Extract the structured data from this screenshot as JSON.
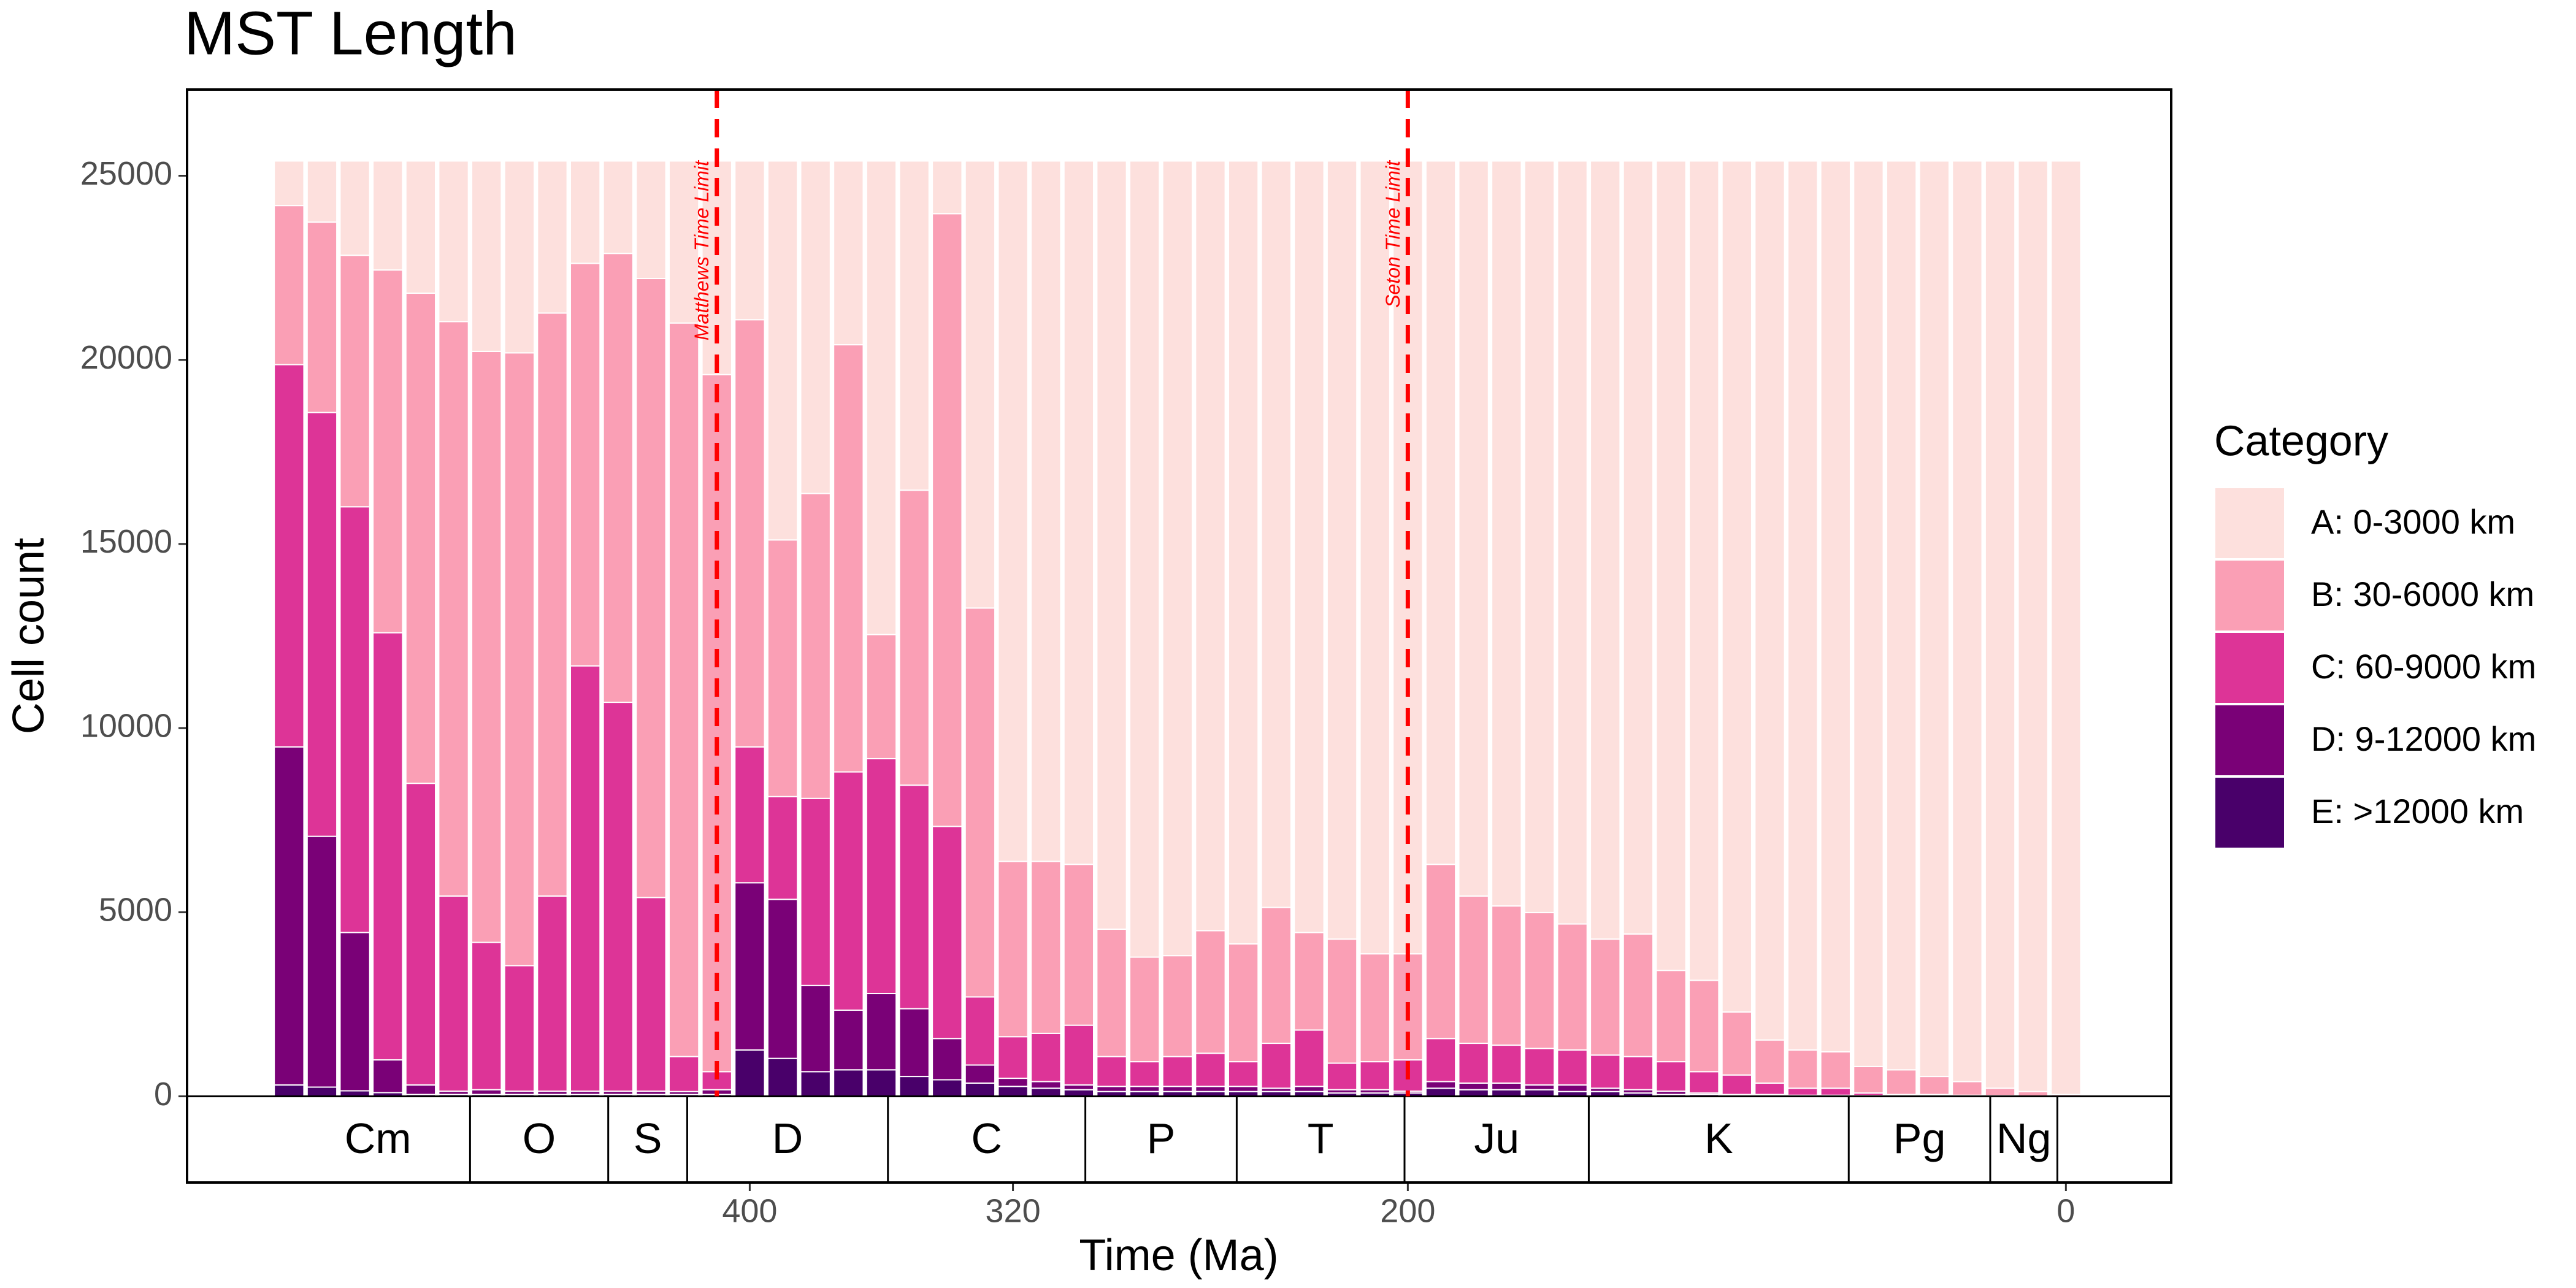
{
  "chart_data": {
    "type": "stacked_bar",
    "title": "MST Length",
    "x_label": "Time (Ma)",
    "y_label": "Cell count",
    "legend_title": "Category",
    "legend_position": "right",
    "x": [
      540,
      530,
      520,
      510,
      500,
      490,
      480,
      470,
      460,
      450,
      440,
      430,
      420,
      410,
      400,
      390,
      380,
      370,
      360,
      350,
      340,
      330,
      320,
      310,
      300,
      290,
      280,
      270,
      260,
      250,
      240,
      230,
      220,
      210,
      200,
      190,
      180,
      170,
      160,
      150,
      140,
      130,
      120,
      110,
      100,
      90,
      80,
      70,
      60,
      50,
      40,
      30,
      20,
      10,
      0
    ],
    "series": [
      {
        "name": "A: 0-3000 km",
        "color": "#fde0dd",
        "values": [
          1210,
          1660,
          2560,
          2960,
          3590,
          4360,
          5170,
          5210,
          4130,
          2780,
          2510,
          3190,
          4400,
          5800,
          4310,
          10290,
          9030,
          4990,
          12860,
          8940,
          1430,
          12140,
          19020,
          19020,
          19100,
          20860,
          21620,
          21580,
          20900,
          21260,
          20270,
          20950,
          21130,
          21530,
          21530,
          19100,
          19960,
          20230,
          20410,
          20720,
          21130,
          20990,
          21980,
          22250,
          23110,
          23870,
          24140,
          24190,
          24590,
          24680,
          24860,
          25000,
          25180,
          25270,
          25350
        ]
      },
      {
        "name": "B: 30-6000 km",
        "color": "#fa9fb5",
        "values": [
          4320,
          5170,
          6830,
          9850,
          13310,
          15600,
          16050,
          16640,
          15830,
          10930,
          12190,
          16810,
          19920,
          18930,
          11600,
          6970,
          8280,
          11600,
          3370,
          8010,
          16640,
          10560,
          4760,
          4670,
          4370,
          3460,
          2840,
          2740,
          3330,
          3200,
          3690,
          2650,
          3370,
          2930,
          2880,
          4730,
          4000,
          3780,
          3690,
          3420,
          3150,
          3330,
          2480,
          2480,
          1710,
          1170,
          1040,
          990,
          720,
          670,
          490,
          370,
          200,
          120,
          50
        ]
      },
      {
        "name": "C: 60-9000 km",
        "color": "#dd3497",
        "values": [
          10380,
          11510,
          11560,
          11600,
          8190,
          5300,
          4000,
          3410,
          5300,
          11550,
          10560,
          5260,
          950,
          490,
          3690,
          2790,
          5080,
          6470,
          6380,
          6070,
          5760,
          1850,
          1130,
          1310,
          1620,
          810,
          670,
          810,
          900,
          670,
          1220,
          1530,
          720,
          760,
          850,
          1170,
          1080,
          1030,
          990,
          950,
          900,
          900,
          800,
          580,
          530,
          310,
          190,
          190,
          70,
          30,
          30,
          20,
          20,
          10,
          0
        ]
      },
      {
        "name": "D: 9-12000 km",
        "color": "#7a0177",
        "values": [
          9180,
          6810,
          4300,
          890,
          260,
          90,
          130,
          90,
          90,
          90,
          90,
          90,
          80,
          130,
          4540,
          4320,
          2340,
          1620,
          2070,
          1840,
          1120,
          490,
          220,
          180,
          130,
          140,
          140,
          140,
          140,
          140,
          90,
          140,
          90,
          90,
          50,
          180,
          180,
          180,
          130,
          180,
          90,
          90,
          90,
          40,
          20,
          30,
          20,
          20,
          10,
          10,
          10,
          10,
          0,
          0,
          0
        ]
      },
      {
        "name": "E: >12000 km",
        "color": "#49006a",
        "values": [
          310,
          250,
          150,
          100,
          50,
          50,
          50,
          50,
          50,
          50,
          50,
          50,
          50,
          50,
          1260,
          1030,
          670,
          720,
          720,
          540,
          450,
          360,
          270,
          220,
          180,
          130,
          130,
          130,
          130,
          130,
          130,
          130,
          90,
          90,
          90,
          220,
          180,
          180,
          180,
          130,
          130,
          90,
          50,
          50,
          30,
          20,
          10,
          10,
          10,
          10,
          10,
          0,
          0,
          0,
          0
        ]
      }
    ],
    "xlim": [
      571,
      -32
    ],
    "xticks": [
      400,
      320,
      200,
      0
    ],
    "ylim": [
      -2340,
      27340
    ],
    "yticks": [
      0,
      5000,
      10000,
      15000,
      20000,
      25000
    ],
    "annotations": [
      {
        "text": "Matthews Time Limit",
        "x": 410,
        "color": "#ff0000"
      },
      {
        "text": "Seton Time Limit",
        "x": 200,
        "color": "#ff0000"
      }
    ],
    "periods": [
      {
        "name": "Cm",
        "start": 541,
        "end": 485
      },
      {
        "name": "O",
        "start": 485,
        "end": 443
      },
      {
        "name": "S",
        "start": 443,
        "end": 419
      },
      {
        "name": "D",
        "start": 419,
        "end": 358
      },
      {
        "name": "C",
        "start": 358,
        "end": 298
      },
      {
        "name": "P",
        "start": 298,
        "end": 252
      },
      {
        "name": "T",
        "start": 252,
        "end": 201
      },
      {
        "name": "Ju",
        "start": 201,
        "end": 145
      },
      {
        "name": "K",
        "start": 145,
        "end": 66
      },
      {
        "name": "Pg",
        "start": 66,
        "end": 23
      },
      {
        "name": "Ng",
        "start": 23,
        "end": 2.6
      }
    ]
  }
}
